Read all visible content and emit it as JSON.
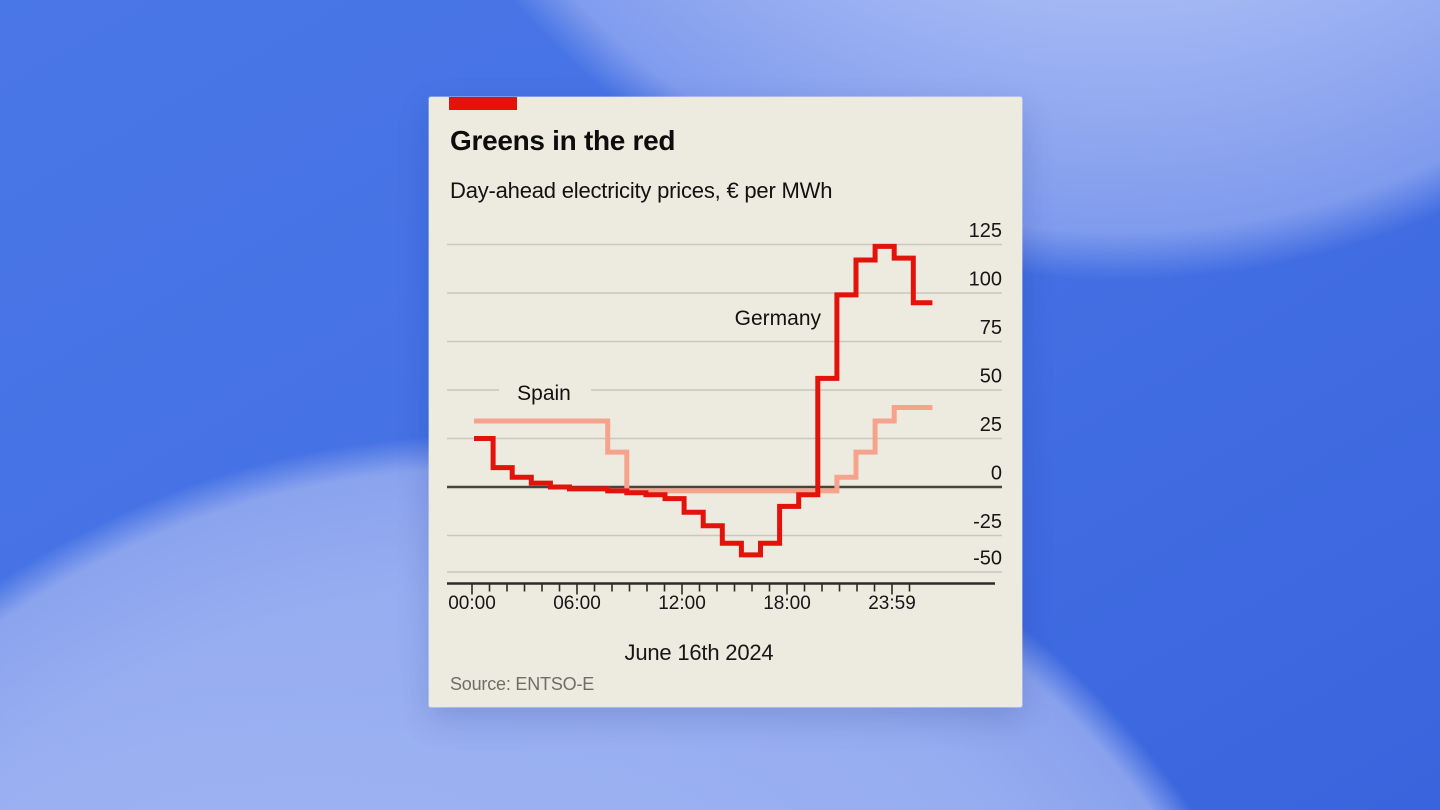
{
  "background": {
    "base_blue": "#4471e4",
    "light_blue_band": "#96abec"
  },
  "card": {
    "background": "#edebdf",
    "tab_color": "#e3120b",
    "title": "Greens in the red",
    "subtitle": "Day-ahead electricity prices, € per MWh",
    "date_label": "June 16th 2024",
    "source": "Source: ENTSO-E"
  },
  "chart_data": {
    "type": "line",
    "step": true,
    "title": "Greens in the red",
    "subtitle": "Day-ahead electricity prices, € per MWh",
    "xlabel": "June 16th 2024",
    "ylabel": "€ per MWh",
    "x_unit": "hour of day",
    "x": [
      0,
      1,
      2,
      3,
      4,
      5,
      6,
      7,
      8,
      9,
      10,
      11,
      12,
      13,
      14,
      15,
      16,
      17,
      18,
      19,
      20,
      21,
      22,
      23
    ],
    "series": [
      {
        "name": "Germany",
        "color": "#e3120b",
        "values": [
          25,
          10,
          5,
          2,
          0,
          -1,
          -1,
          -2,
          -3,
          -4,
          -6,
          -13,
          -20,
          -29,
          -35,
          -29,
          -10,
          -4,
          56,
          99,
          117,
          124,
          118,
          95
        ]
      },
      {
        "name": "Spain",
        "color": "#f5a38c",
        "values": [
          34,
          34,
          34,
          34,
          34,
          34,
          34,
          18,
          -2,
          -2,
          -2,
          -2,
          -2,
          -2,
          -2,
          -2,
          -2,
          -2,
          -2,
          5,
          18,
          34,
          41,
          41
        ]
      }
    ],
    "yticks": [
      125,
      100,
      75,
      50,
      25,
      0,
      -25,
      -50
    ],
    "ylim": [
      -50,
      137
    ],
    "xticks": [
      {
        "hour": 0,
        "label": "00:00"
      },
      {
        "hour": 6,
        "label": "06:00"
      },
      {
        "hour": 12,
        "label": "12:00"
      },
      {
        "hour": 18,
        "label": "18:00"
      },
      {
        "hour": 24,
        "label": "23:59"
      }
    ],
    "grid": "horizontal",
    "zero_line": true,
    "legend_position": "inline-labels",
    "grid_color": "#c9c8bb",
    "zero_line_color": "#45443e",
    "axis_color": "#2b2b28",
    "text_color": "#161616"
  }
}
